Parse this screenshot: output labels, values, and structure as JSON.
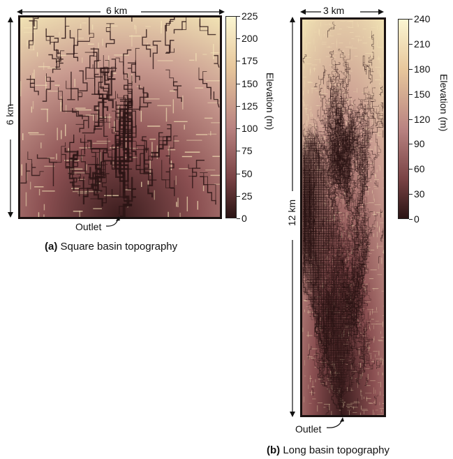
{
  "panel_a": {
    "width_label": "6 km",
    "height_label": "6 km",
    "outlet_label": "Outlet",
    "caption_letter": "(a)",
    "caption_text": " Square basin topography",
    "colorbar_title": "Elevation (m)",
    "colorbar_ticks": [
      "225",
      "200",
      "175",
      "150",
      "125",
      "100",
      "75",
      "50",
      "25",
      "0"
    ],
    "colorbar_range": [
      0,
      225
    ]
  },
  "panel_b": {
    "width_label": "3 km",
    "height_label": "12 km",
    "outlet_label": "Outlet",
    "caption_letter": "(b)",
    "caption_text": " Long basin topography",
    "colorbar_title": "Elevation (m)",
    "colorbar_ticks": [
      "240",
      "210",
      "180",
      "150",
      "120",
      "90",
      "60",
      "30",
      "0"
    ],
    "colorbar_range": [
      0,
      240
    ]
  },
  "colors": {
    "low": "#2a1414",
    "mid": "#a8686b",
    "high": "#f7f2c4",
    "frame": "#1a1110"
  }
}
